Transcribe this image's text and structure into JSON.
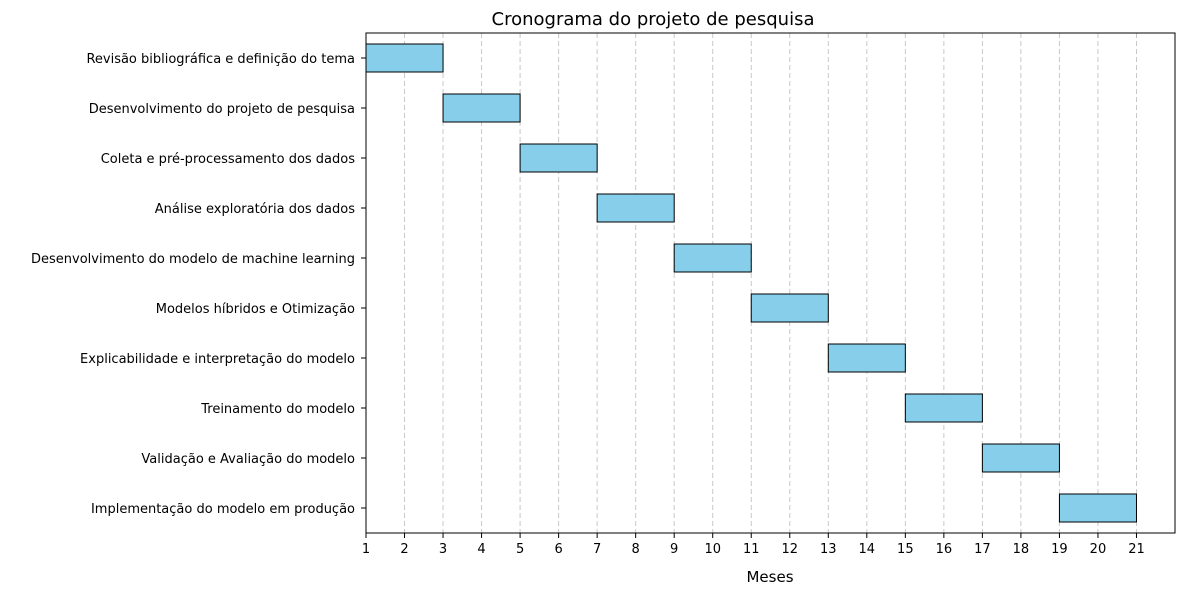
{
  "chart_data": {
    "type": "gantt",
    "title": "Cronograma do projeto de pesquisa",
    "xlabel": "Meses",
    "ylabel": "",
    "xlim": [
      1,
      22
    ],
    "x_ticks": [
      1,
      2,
      3,
      4,
      5,
      6,
      7,
      8,
      9,
      10,
      11,
      12,
      13,
      14,
      15,
      16,
      17,
      18,
      19,
      20,
      21
    ],
    "x_tick_labels": [
      "1",
      "2",
      "3",
      "4",
      "5",
      "6",
      "7",
      "8",
      "9",
      "10",
      "11",
      "12",
      "13",
      "14",
      "15",
      "16",
      "17",
      "18",
      "19",
      "20",
      "21"
    ],
    "grid": "x-axis, dashed",
    "bar_color": "#87ceeb",
    "bar_edge_color": "#000000",
    "grid_color": "#c8c8c8",
    "tasks": [
      {
        "name": "Revisão bibliográfica e definição do tema",
        "start": 1,
        "end": 3
      },
      {
        "name": "Desenvolvimento do projeto de pesquisa",
        "start": 3,
        "end": 5
      },
      {
        "name": "Coleta e pré-processamento dos dados",
        "start": 5,
        "end": 7
      },
      {
        "name": "Análise exploratória dos dados",
        "start": 7,
        "end": 9
      },
      {
        "name": "Desenvolvimento do modelo de machine learning",
        "start": 9,
        "end": 11
      },
      {
        "name": "Modelos híbridos e Otimização",
        "start": 11,
        "end": 13
      },
      {
        "name": "Explicabilidade e interpretação do modelo",
        "start": 13,
        "end": 15
      },
      {
        "name": "Treinamento do modelo",
        "start": 15,
        "end": 17
      },
      {
        "name": "Validação e Avaliação do modelo",
        "start": 17,
        "end": 19
      },
      {
        "name": "Implementação do modelo em produção",
        "start": 19,
        "end": 21
      }
    ]
  }
}
